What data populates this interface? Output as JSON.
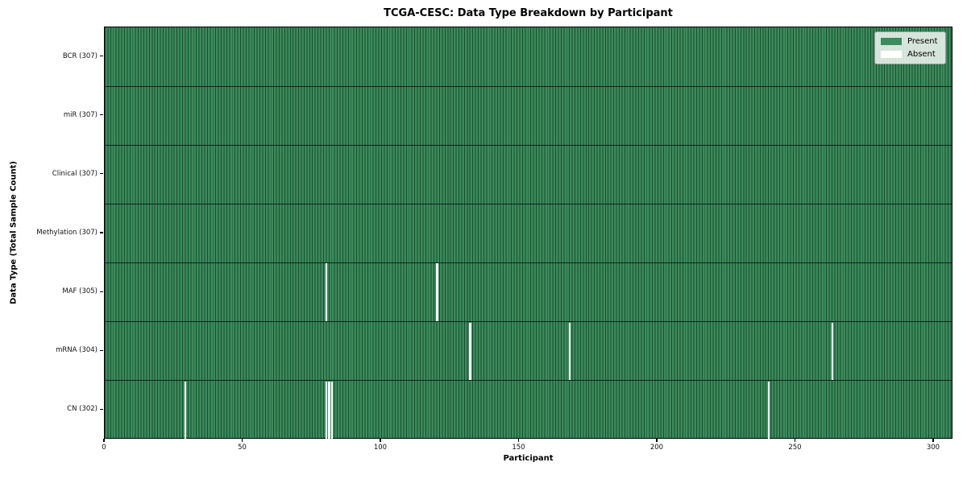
{
  "chart_data": {
    "type": "heatmap",
    "title": "TCGA-CESC: Data Type Breakdown by Participant",
    "xlabel": "Participant",
    "ylabel": "Data Type (Total Sample Count)",
    "x_range": [
      0,
      307
    ],
    "x_ticks": [
      0,
      50,
      100,
      150,
      200,
      250,
      300
    ],
    "grid": "cell-borders",
    "legend_position": "upper-right",
    "legend": [
      {
        "label": "Present",
        "color": "#3a8c5c"
      },
      {
        "label": "Absent",
        "color": "#ffffff"
      }
    ],
    "colors": {
      "present": "#3a8c5c",
      "absent": "#ffffff",
      "cell_border": "#1f4a31",
      "row_divider": "#0d251a"
    },
    "rows": [
      {
        "label": "BCR (307)",
        "data_type": "BCR",
        "total": 307,
        "absent_participants": []
      },
      {
        "label": "miR (307)",
        "data_type": "miR",
        "total": 307,
        "absent_participants": []
      },
      {
        "label": "Clinical (307)",
        "data_type": "Clinical",
        "total": 307,
        "absent_participants": []
      },
      {
        "label": "Methylation (307)",
        "data_type": "Methylation",
        "total": 307,
        "absent_participants": []
      },
      {
        "label": "MAF (305)",
        "data_type": "MAF",
        "total": 305,
        "absent_participants": [
          80,
          120
        ]
      },
      {
        "label": "mRNA (304)",
        "data_type": "mRNA",
        "total": 304,
        "absent_participants": [
          132,
          168,
          263
        ]
      },
      {
        "label": "CN (302)",
        "data_type": "CN",
        "total": 302,
        "absent_participants": [
          29,
          80,
          81,
          82,
          240
        ]
      }
    ]
  }
}
